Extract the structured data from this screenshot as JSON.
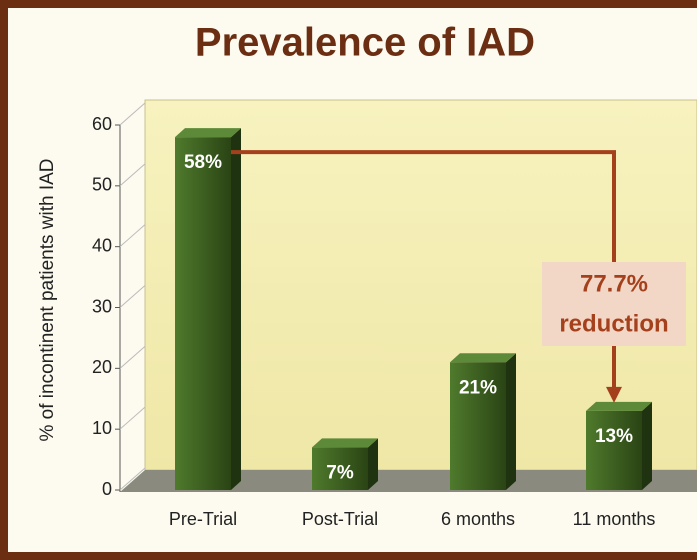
{
  "chart_data": {
    "type": "bar",
    "title": "Prevalence of IAD",
    "y_label": "% of incontinent patients with IAD",
    "categories": [
      "Pre-Trial",
      "Post-Trial",
      "6 months",
      "11 months"
    ],
    "values": [
      58,
      7,
      21,
      13
    ],
    "value_labels": [
      "58%",
      "7%",
      "21%",
      "13%"
    ],
    "color": "#3d5e22",
    "ylim": [
      0,
      60
    ],
    "yticks": [
      0,
      10,
      20,
      30,
      40,
      50,
      60
    ],
    "annotations": [
      "77.7%",
      "reduction"
    ]
  }
}
